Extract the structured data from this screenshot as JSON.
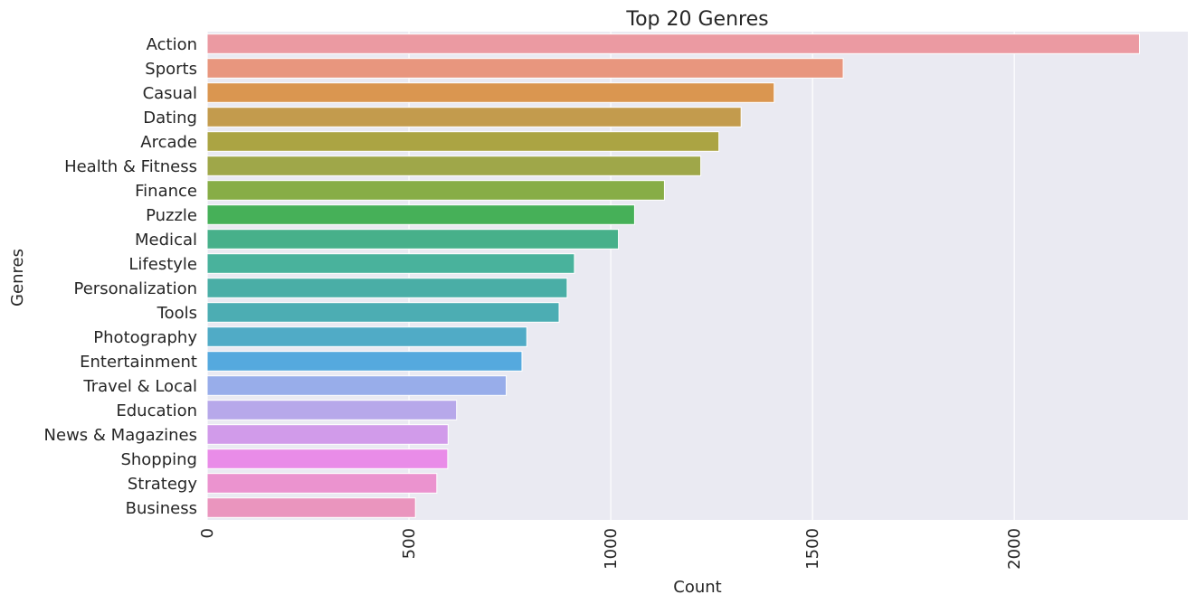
{
  "chart_data": {
    "type": "bar",
    "orientation": "horizontal",
    "title": "Top 20 Genres",
    "xlabel": "Count",
    "ylabel": "Genres",
    "xlim": [
      0,
      2430
    ],
    "xticks": [
      0,
      500,
      1000,
      1500,
      2000
    ],
    "xtick_rotation": -90,
    "grid": true,
    "style": "seaborn-darkgrid",
    "background": "#eaeaf2",
    "categories": [
      "Action",
      "Sports",
      "Casual",
      "Dating",
      "Arcade",
      "Health & Fitness",
      "Finance",
      "Puzzle",
      "Medical",
      "Lifestyle",
      "Personalization",
      "Tools",
      "Photography",
      "Entertainment",
      "Travel & Local",
      "Education",
      "News & Magazines",
      "Shopping",
      "Strategy",
      "Business"
    ],
    "values": [
      2310,
      1576,
      1405,
      1323,
      1268,
      1223,
      1133,
      1059,
      1019,
      910,
      892,
      872,
      792,
      780,
      741,
      618,
      597,
      596,
      569,
      516
    ],
    "colors": [
      "#eb9aa2",
      "#e8967e",
      "#da9650",
      "#c39b4d",
      "#aba443",
      "#9fa749",
      "#87ad46",
      "#46b058",
      "#47b08a",
      "#49b29c",
      "#4aaea6",
      "#4cadb3",
      "#50abc6",
      "#55a9de",
      "#98adea",
      "#b7a8ea",
      "#d19bea",
      "#e98ce8",
      "#eb93cf",
      "#ea95be"
    ]
  }
}
